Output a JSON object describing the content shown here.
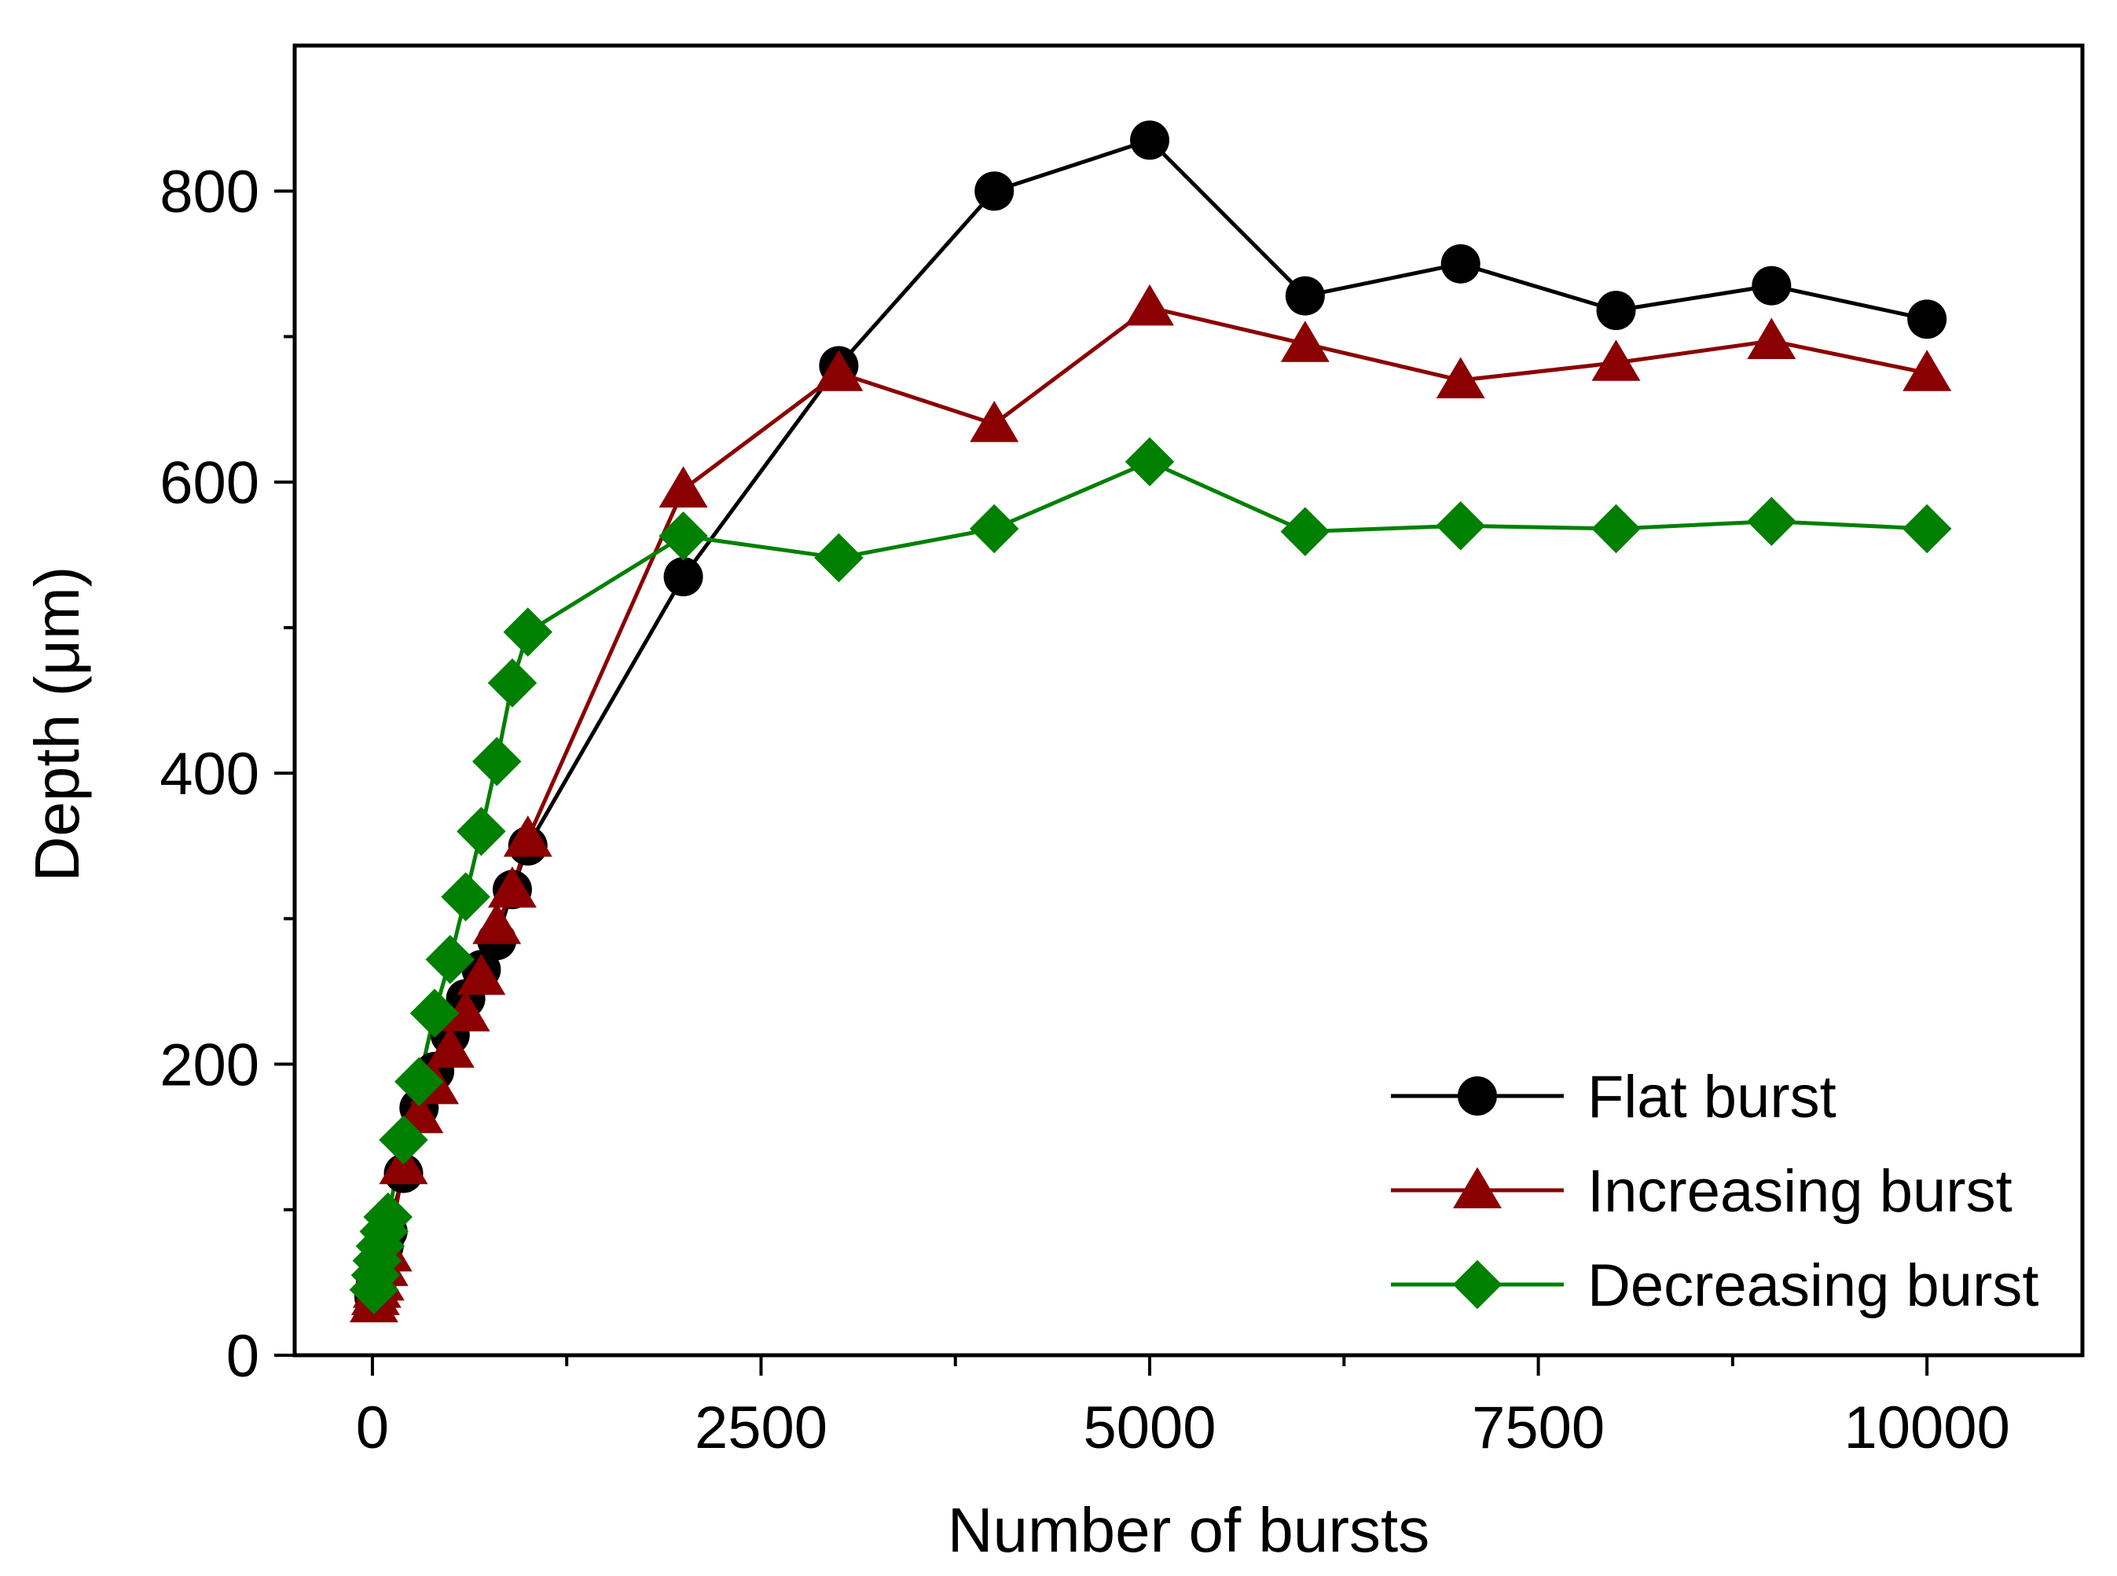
{
  "chart_data": {
    "type": "line",
    "title": "",
    "xlabel": "Number of bursts",
    "ylabel": "Depth (μm)",
    "xlim": [
      -500,
      11000
    ],
    "ylim": [
      0,
      900
    ],
    "x_major_ticks": [
      0,
      2500,
      5000,
      7500,
      10000
    ],
    "x_tick_labels": [
      "0",
      "2500",
      "5000",
      "7500",
      "10000"
    ],
    "x_minor_ticks": [
      1250,
      3750,
      6250,
      8750
    ],
    "y_major_ticks": [
      0,
      200,
      400,
      600,
      800
    ],
    "y_tick_labels": [
      "0",
      "200",
      "400",
      "600",
      "800"
    ],
    "y_minor_ticks": [
      100,
      300,
      500,
      700
    ],
    "legend_position": "bottom-right",
    "series": [
      {
        "name": "Flat burst",
        "color": "#000000",
        "marker": "circle",
        "x": [
          10,
          20,
          30,
          50,
          75,
          100,
          200,
          300,
          400,
          500,
          600,
          700,
          800,
          900,
          1000,
          2000,
          3000,
          4000,
          5000,
          6000,
          7000,
          8000,
          9000,
          10000
        ],
        "y": [
          40,
          50,
          55,
          65,
          75,
          85,
          125,
          170,
          195,
          220,
          245,
          265,
          285,
          320,
          350,
          535,
          680,
          800,
          835,
          728,
          750,
          718,
          735,
          712
        ]
      },
      {
        "name": "Increasing burst",
        "color": "#8b0000",
        "marker": "triangle",
        "x": [
          10,
          20,
          30,
          50,
          75,
          100,
          200,
          300,
          400,
          500,
          600,
          700,
          800,
          900,
          1000,
          2000,
          3000,
          4000,
          5000,
          6000,
          7000,
          8000,
          9000,
          10000
        ],
        "y": [
          35,
          40,
          45,
          50,
          60,
          70,
          130,
          165,
          185,
          210,
          235,
          260,
          295,
          320,
          355,
          595,
          675,
          640,
          720,
          695,
          670,
          682,
          697,
          675
        ]
      },
      {
        "name": "Decreasing burst",
        "color": "#008000",
        "marker": "diamond",
        "x": [
          10,
          20,
          30,
          50,
          75,
          100,
          200,
          300,
          400,
          500,
          600,
          700,
          800,
          900,
          1000,
          2000,
          3000,
          4000,
          5000,
          6000,
          7000,
          8000,
          9000,
          10000
        ],
        "y": [
          45,
          55,
          65,
          75,
          85,
          95,
          148,
          188,
          235,
          272,
          315,
          360,
          408,
          462,
          497,
          563,
          548,
          568,
          614,
          566,
          570,
          568,
          573,
          568
        ]
      }
    ]
  }
}
